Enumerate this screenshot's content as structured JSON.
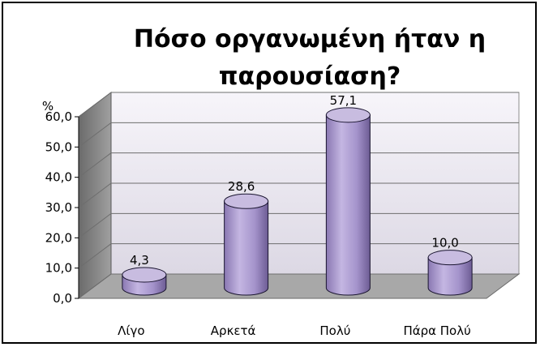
{
  "chart_data": {
    "type": "bar",
    "title_lines": [
      "Πόσο οργανωμένη ήταν η",
      "παρουσίαση?"
    ],
    "ylabel": "%",
    "xlabel": "",
    "categories": [
      "Λίγο",
      "Αρκετά",
      "Πολύ",
      "Πάρα Πολύ"
    ],
    "values": [
      4.3,
      28.6,
      57.1,
      10.0
    ],
    "value_labels": [
      "4,3",
      "28,6",
      "57,1",
      "10,0"
    ],
    "y_ticks": [
      "0,0",
      "10,0",
      "20,0",
      "30,0",
      "40,0",
      "50,0",
      "60,0"
    ],
    "ylim": [
      0,
      60
    ],
    "grid": true,
    "legend": "none",
    "colors": {
      "bar_fill": "#a796c8",
      "bar_top": "#c8bce0",
      "bar_stroke": "#1a1530",
      "back_wall": "#f0eef6",
      "side_wall": "#808080",
      "floor": "#a8a8a8"
    }
  }
}
